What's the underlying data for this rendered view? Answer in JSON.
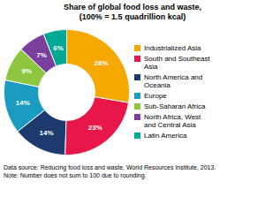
{
  "chart_data": {
    "type": "pie",
    "title": "Share of global food loss and waste,\n(100% = 1.5 quadrillion kcal)",
    "categories": [
      "Industrialized Asia",
      "South and Southeast\nAsia",
      "North America and\nOceania",
      "Europe",
      "Sub-Saharan Africa",
      "North Africa, West\nand Central Asia",
      "Latin America"
    ],
    "values": [
      28,
      23,
      14,
      14,
      9,
      7,
      6
    ],
    "value_labels": [
      "28%",
      "23%",
      "14%",
      "14%",
      "9%",
      "7%",
      "6%"
    ],
    "colors": [
      "#F5A800",
      "#E8174A",
      "#1C3A6E",
      "#1A9CC0",
      "#8DC63F",
      "#7B3F9E",
      "#00A896"
    ],
    "data_labels": true,
    "legend": "right",
    "annotations": [
      "Data source: Reducing food loss and waste, World Resources Institute, 2013.",
      "Note: Number does not sum to 100 due to rounding."
    ]
  }
}
